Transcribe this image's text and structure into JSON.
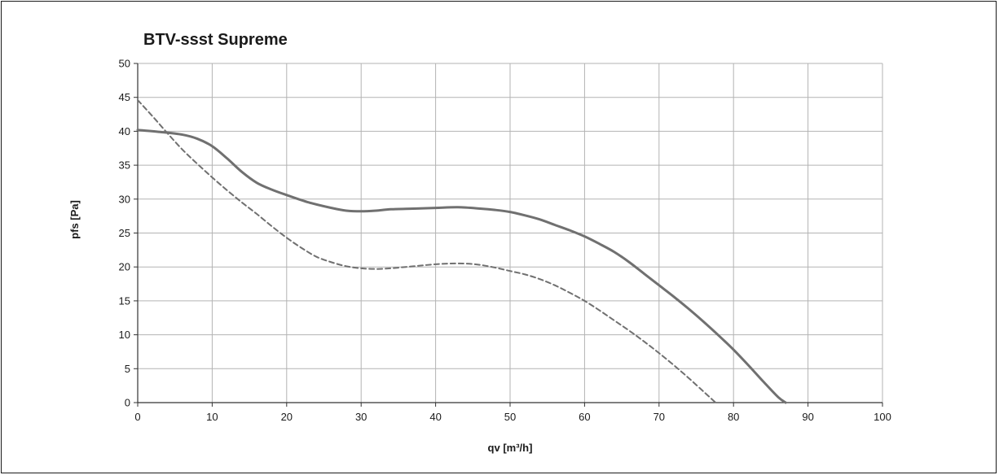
{
  "chart_data": {
    "type": "line",
    "title": "BTV-ssst Supreme",
    "xlabel": "qv [m³/h]",
    "ylabel": "pfs [Pa]",
    "xlim": [
      0,
      100
    ],
    "ylim": [
      0,
      50
    ],
    "xticks": [
      "0",
      "10",
      "20",
      "30",
      "40",
      "50",
      "60",
      "70",
      "80",
      "90",
      "100"
    ],
    "yticks": [
      "0",
      "5",
      "10",
      "15",
      "20",
      "25",
      "30",
      "35",
      "40",
      "45",
      "50"
    ],
    "grid": true,
    "series": [
      {
        "style": "solid",
        "color": "#707070",
        "points": [
          [
            0,
            40.2
          ],
          [
            3,
            39.9
          ],
          [
            6,
            39.5
          ],
          [
            8,
            38.9
          ],
          [
            10,
            37.8
          ],
          [
            12,
            36.0
          ],
          [
            14,
            34.0
          ],
          [
            16,
            32.4
          ],
          [
            18,
            31.4
          ],
          [
            20,
            30.6
          ],
          [
            23,
            29.5
          ],
          [
            26,
            28.7
          ],
          [
            28,
            28.3
          ],
          [
            30,
            28.2
          ],
          [
            32,
            28.3
          ],
          [
            34,
            28.5
          ],
          [
            37,
            28.6
          ],
          [
            40,
            28.7
          ],
          [
            43,
            28.8
          ],
          [
            46,
            28.6
          ],
          [
            48,
            28.4
          ],
          [
            50,
            28.1
          ],
          [
            52,
            27.6
          ],
          [
            54,
            27.0
          ],
          [
            56,
            26.2
          ],
          [
            58,
            25.4
          ],
          [
            60,
            24.5
          ],
          [
            62,
            23.4
          ],
          [
            64,
            22.2
          ],
          [
            66,
            20.7
          ],
          [
            68,
            19.0
          ],
          [
            70,
            17.3
          ],
          [
            72,
            15.6
          ],
          [
            74,
            13.8
          ],
          [
            76,
            11.9
          ],
          [
            78,
            9.9
          ],
          [
            80,
            7.8
          ],
          [
            82,
            5.5
          ],
          [
            84,
            3.1
          ],
          [
            86,
            0.8
          ],
          [
            87,
            0
          ]
        ]
      },
      {
        "style": "dashed",
        "color": "#707070",
        "points": [
          [
            0,
            44.6
          ],
          [
            2,
            42.2
          ],
          [
            4,
            39.7
          ],
          [
            6,
            37.3
          ],
          [
            8,
            35.2
          ],
          [
            10,
            33.2
          ],
          [
            12,
            31.3
          ],
          [
            14,
            29.5
          ],
          [
            16,
            27.8
          ],
          [
            18,
            26.0
          ],
          [
            20,
            24.3
          ],
          [
            22,
            22.8
          ],
          [
            24,
            21.5
          ],
          [
            26,
            20.7
          ],
          [
            28,
            20.1
          ],
          [
            30,
            19.8
          ],
          [
            32,
            19.7
          ],
          [
            34,
            19.8
          ],
          [
            36,
            20.0
          ],
          [
            38,
            20.2
          ],
          [
            40,
            20.4
          ],
          [
            42,
            20.5
          ],
          [
            44,
            20.5
          ],
          [
            46,
            20.3
          ],
          [
            48,
            19.9
          ],
          [
            50,
            19.4
          ],
          [
            52,
            18.9
          ],
          [
            54,
            18.2
          ],
          [
            56,
            17.3
          ],
          [
            58,
            16.2
          ],
          [
            60,
            15.0
          ],
          [
            62,
            13.6
          ],
          [
            64,
            12.1
          ],
          [
            66,
            10.6
          ],
          [
            68,
            9.0
          ],
          [
            70,
            7.3
          ],
          [
            72,
            5.5
          ],
          [
            74,
            3.6
          ],
          [
            76,
            1.6
          ],
          [
            77.6,
            0
          ]
        ]
      }
    ]
  }
}
